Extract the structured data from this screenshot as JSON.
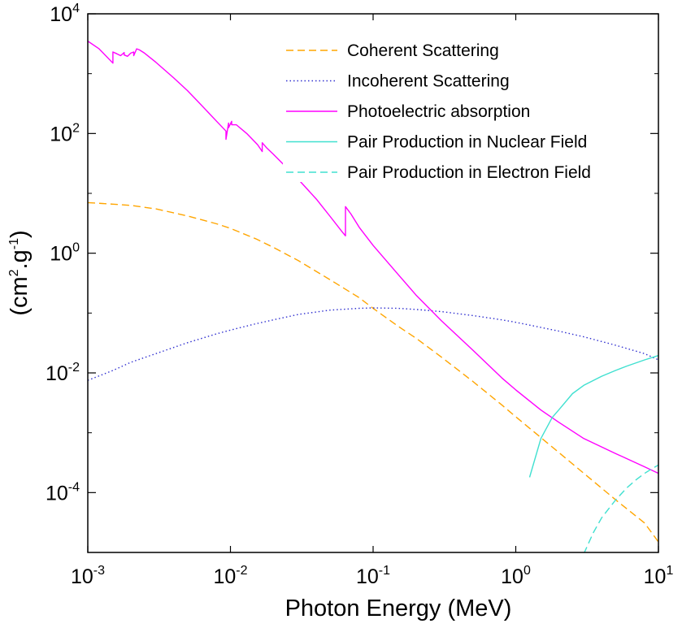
{
  "chart_data": {
    "type": "line",
    "title": "",
    "xlabel": "Photon Energy (MeV)",
    "ylabel": "(cm².g⁻¹)",
    "ylabel_parts": {
      "open": "(cm",
      "exp1": "2",
      "mid": ".g",
      "exp2": "-1",
      "close": ")"
    },
    "xscale": "log",
    "yscale": "log",
    "xlim": [
      0.001,
      10
    ],
    "ylim": [
      1e-05,
      10000
    ],
    "x_ticks": [
      {
        "value": 0.001,
        "base": "10",
        "exp": "-3"
      },
      {
        "value": 0.01,
        "base": "10",
        "exp": "-2"
      },
      {
        "value": 0.1,
        "base": "10",
        "exp": "-1"
      },
      {
        "value": 1,
        "base": "10",
        "exp": "0"
      },
      {
        "value": 10,
        "base": "10",
        "exp": "1"
      }
    ],
    "y_ticks": [
      {
        "value": 10000,
        "base": "10",
        "exp": "4"
      },
      {
        "value": 100,
        "base": "10",
        "exp": "2"
      },
      {
        "value": 1,
        "base": "10",
        "exp": "0"
      },
      {
        "value": 0.01,
        "base": "10",
        "exp": "-2"
      },
      {
        "value": 0.0001,
        "base": "10",
        "exp": "-4"
      }
    ],
    "minor_y_ticks": [
      1000,
      10,
      0.1,
      0.001
    ],
    "grid": false,
    "legend_position": "top-right",
    "series": [
      {
        "name": "Coherent Scattering",
        "color": "#ffa500",
        "dash": "dashed",
        "x": [
          0.001,
          0.0015,
          0.002,
          0.003,
          0.005,
          0.008,
          0.01,
          0.015,
          0.02,
          0.03,
          0.05,
          0.08,
          0.1,
          0.15,
          0.2,
          0.3,
          0.5,
          0.8,
          1,
          2,
          3,
          5,
          8,
          10
        ],
        "y": [
          7.0,
          6.6,
          6.3,
          5.5,
          4.2,
          3.1,
          2.6,
          1.75,
          1.25,
          0.75,
          0.36,
          0.18,
          0.12,
          0.06,
          0.038,
          0.0185,
          0.0072,
          0.0029,
          0.00185,
          0.00047,
          0.00021,
          7.6e-05,
          3.1e-05,
          1.5e-05
        ]
      },
      {
        "name": "Incoherent Scattering",
        "color": "#3030d0",
        "dash": "dotted",
        "x": [
          0.001,
          0.0015,
          0.002,
          0.003,
          0.005,
          0.008,
          0.01,
          0.015,
          0.02,
          0.03,
          0.05,
          0.08,
          0.1,
          0.15,
          0.2,
          0.3,
          0.5,
          0.8,
          1,
          2,
          3,
          5,
          8,
          10
        ],
        "y": [
          0.0075,
          0.011,
          0.015,
          0.021,
          0.032,
          0.045,
          0.052,
          0.066,
          0.077,
          0.095,
          0.112,
          0.12,
          0.122,
          0.12,
          0.115,
          0.106,
          0.091,
          0.077,
          0.07,
          0.05,
          0.04,
          0.029,
          0.021,
          0.0165
        ]
      },
      {
        "name": "Photoelectric absorption",
        "color": "#ff00ff",
        "dash": "solid",
        "x": [
          0.001,
          0.0012,
          0.0015,
          0.0015,
          0.0016,
          0.0017,
          0.0018,
          0.0018,
          0.0019,
          0.002,
          0.0021,
          0.0021,
          0.0022,
          0.0023,
          0.0025,
          0.003,
          0.004,
          0.005,
          0.006,
          0.008,
          0.0093,
          0.0093,
          0.0097,
          0.0097,
          0.0102,
          0.0102,
          0.011,
          0.013,
          0.0155,
          0.0167,
          0.0167,
          0.018,
          0.02,
          0.03,
          0.04,
          0.05,
          0.06,
          0.064,
          0.064,
          0.07,
          0.08,
          0.1,
          0.15,
          0.2,
          0.3,
          0.5,
          0.8,
          1,
          1.5,
          2,
          3,
          5,
          8,
          10
        ],
        "y": [
          3500,
          2600,
          1500,
          2300,
          2150,
          2000,
          2250,
          2050,
          1950,
          2200,
          2300,
          2000,
          2600,
          2500,
          2200,
          1550,
          850,
          520,
          330,
          160,
          110,
          80,
          150,
          125,
          160,
          140,
          140,
          100,
          65,
          50,
          70,
          57,
          45,
          17,
          8.0,
          4.1,
          2.35,
          1.95,
          6.0,
          4.5,
          2.7,
          1.35,
          0.44,
          0.2,
          0.075,
          0.024,
          0.0082,
          0.0052,
          0.0024,
          0.0015,
          0.0008,
          0.00045,
          0.00027,
          0.00021
        ]
      },
      {
        "name": "Pair Production in Nuclear Field",
        "color": "#40e0d0",
        "dash": "solid",
        "x": [
          1.25,
          1.5,
          1.8,
          2,
          2.5,
          3,
          4,
          5,
          6,
          8,
          10
        ],
        "y": [
          0.00018,
          0.0008,
          0.0018,
          0.0024,
          0.0045,
          0.0062,
          0.0088,
          0.011,
          0.013,
          0.0165,
          0.0195
        ]
      },
      {
        "name": "Pair Production in Electron Field",
        "color": "#40e0d0",
        "dash": "dashed",
        "x": [
          3,
          3.5,
          4,
          5,
          6,
          7,
          8,
          9,
          10
        ],
        "y": [
          9.5e-06,
          2.15e-05,
          3.8e-05,
          7.5e-05,
          0.00012,
          0.000165,
          0.00021,
          0.00025,
          0.00029
        ]
      }
    ]
  }
}
